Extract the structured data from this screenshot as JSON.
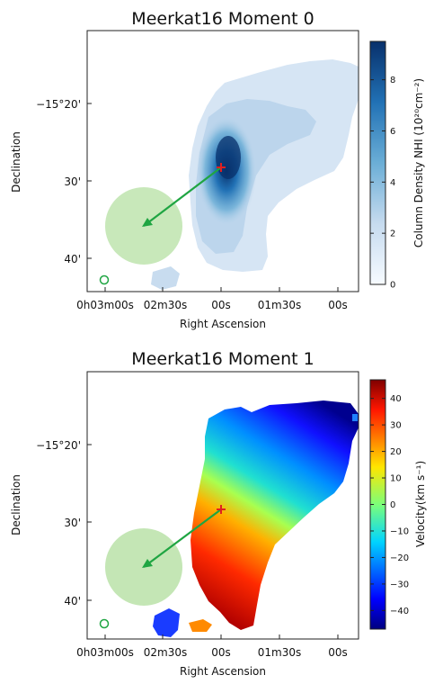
{
  "chart_data": [
    {
      "type": "heatmap",
      "title": "Meerkat16 Moment 0",
      "xlabel": "Right Ascension",
      "ylabel": "Declination",
      "xticks": [
        "0h03m00s",
        "02m30s",
        "00s",
        "01m30s",
        "00s"
      ],
      "yticks": [
        "−15°20'",
        "30'",
        "40'"
      ],
      "colorbar": {
        "label": "Column Density NHI (10²⁰cm⁻²)",
        "ticks": [
          0,
          2,
          4,
          6,
          8
        ],
        "range": [
          0,
          9.5
        ],
        "colormap": "Blues"
      },
      "annotations": [
        "red cross marker",
        "green arrow",
        "light green circle (beam)",
        "small green circle"
      ]
    },
    {
      "type": "heatmap",
      "title": "Meerkat16 Moment 1",
      "xlabel": "Right Ascension",
      "ylabel": "Declination",
      "xticks": [
        "0h03m00s",
        "02m30s",
        "00s",
        "01m30s",
        "00s"
      ],
      "yticks": [
        "−15°20'",
        "30'",
        "40'"
      ],
      "colorbar": {
        "label": "Velocity(km s⁻¹)",
        "ticks": [
          -40,
          -30,
          -20,
          -10,
          0,
          10,
          20,
          30,
          40
        ],
        "range": [
          -47,
          47
        ],
        "colormap": "jet"
      },
      "annotations": [
        "red cross marker",
        "green arrow",
        "light green circle (beam)",
        "small green circle"
      ]
    }
  ]
}
